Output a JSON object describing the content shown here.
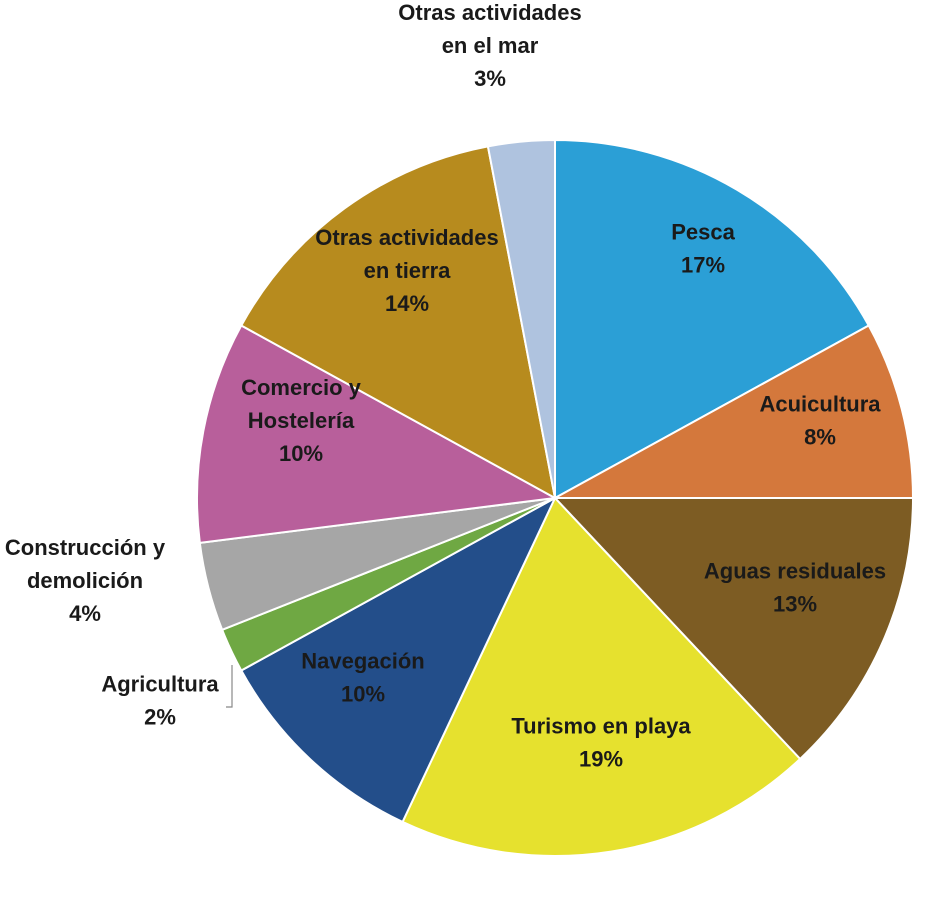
{
  "chart_data": {
    "type": "pie",
    "title": "",
    "unit": "%",
    "start_angle_deg": 0,
    "direction": "clockwise",
    "slices": [
      {
        "name": "Pesca",
        "value": 17,
        "label": "17%",
        "color": "#2B9FD6",
        "label_lines": [
          "Pesca",
          "17%"
        ]
      },
      {
        "name": "Acuicultura",
        "value": 8,
        "label": "8%",
        "color": "#D4783C",
        "label_lines": [
          "Acuicultura",
          "8%"
        ]
      },
      {
        "name": "Aguas residuales",
        "value": 13,
        "label": "13%",
        "color": "#7D5C23",
        "label_lines": [
          "Aguas residuales",
          "13%"
        ]
      },
      {
        "name": "Turismo en playa",
        "value": 19,
        "label": "19%",
        "color": "#E6E12E",
        "label_lines": [
          "Turismo en playa",
          "19%"
        ]
      },
      {
        "name": "Navegación",
        "value": 10,
        "label": "10%",
        "color": "#234E8A",
        "label_lines": [
          "Navegación",
          "10%"
        ]
      },
      {
        "name": "Agricultura",
        "value": 2,
        "label": "2%",
        "color": "#6FA843",
        "label_lines": [
          "Agricultura",
          "2%"
        ]
      },
      {
        "name": "Construcción y demolición",
        "value": 4,
        "label": "4%",
        "color": "#A6A6A6",
        "label_lines": [
          "Construcción y",
          "demolición",
          "4%"
        ]
      },
      {
        "name": "Comercio y Hostelería",
        "value": 10,
        "label": "10%",
        "color": "#B85F9B",
        "label_lines": [
          "Comercio y",
          "Hostelería",
          "10%"
        ]
      },
      {
        "name": "Otras actividades en tierra",
        "value": 14,
        "label": "14%",
        "color": "#B78B1E",
        "label_lines": [
          "Otras actividades",
          "en tierra",
          "14%"
        ]
      },
      {
        "name": "Otras actividades en el mar",
        "value": 3,
        "label": "3%",
        "color": "#AFC3DF",
        "label_lines": [
          "Otras actividades",
          "en el mar",
          "3%"
        ]
      }
    ]
  }
}
